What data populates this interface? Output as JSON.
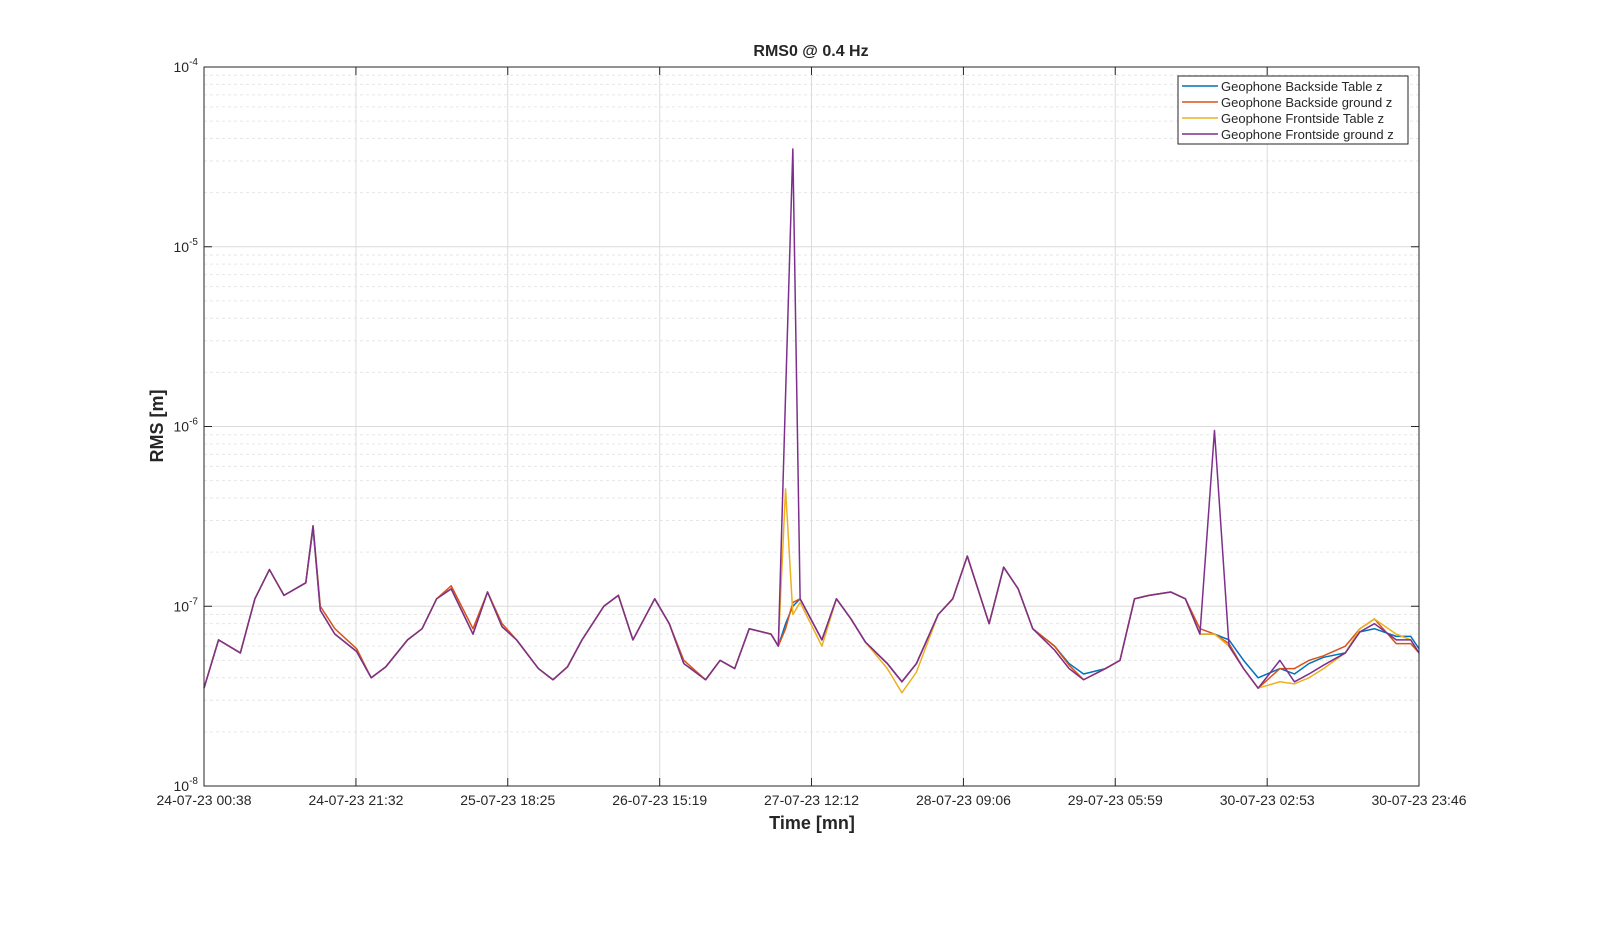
{
  "chart_data": {
    "type": "line",
    "title": "RMS0 @ 0.4 Hz",
    "xlabel": "Time [mn]",
    "ylabel": "RMS [m]",
    "log_y": true,
    "grid": true,
    "minor_grid": true,
    "legend": "top-right",
    "x": [
      "24-07-23 00:38",
      "24-07-23 02:38",
      "24-07-23 05:38",
      "24-07-23 07:38",
      "24-07-23 09:38",
      "24-07-23 11:38",
      "24-07-23 14:38",
      "24-07-23 15:38",
      "24-07-23 16:38",
      "24-07-23 18:38",
      "24-07-23 21:38",
      "24-07-23 23:38",
      "25-07-23 01:38",
      "25-07-23 04:38",
      "25-07-23 06:38",
      "25-07-23 08:38",
      "25-07-23 10:38",
      "25-07-23 13:38",
      "25-07-23 15:38",
      "25-07-23 17:38",
      "25-07-23 19:38",
      "25-07-23 22:38",
      "26-07-23 00:38",
      "26-07-23 02:38",
      "26-07-23 04:38",
      "26-07-23 07:38",
      "26-07-23 09:38",
      "26-07-23 11:38",
      "26-07-23 14:38",
      "26-07-23 16:38",
      "26-07-23 18:38",
      "26-07-23 21:38",
      "26-07-23 23:38",
      "27-07-23 01:38",
      "27-07-23 03:38",
      "27-07-23 06:38",
      "27-07-23 07:38",
      "27-07-23 08:38",
      "27-07-23 09:38",
      "27-07-23 10:38",
      "27-07-23 13:38",
      "27-07-23 15:38",
      "27-07-23 17:38",
      "27-07-23 19:38",
      "27-07-23 22:38",
      "28-07-23 00:38",
      "28-07-23 02:38",
      "28-07-23 05:38",
      "28-07-23 07:38",
      "28-07-23 09:38",
      "28-07-23 12:38",
      "28-07-23 14:38",
      "28-07-23 16:38",
      "28-07-23 18:38",
      "28-07-23 21:38",
      "28-07-23 23:38",
      "29-07-23 01:38",
      "29-07-23 04:38",
      "29-07-23 06:38",
      "29-07-23 08:38",
      "29-07-23 10:38",
      "29-07-23 13:38",
      "29-07-23 15:38",
      "29-07-23 17:38",
      "29-07-23 19:38",
      "29-07-23 21:38",
      "29-07-23 23:38",
      "30-07-23 01:38",
      "30-07-23 04:38",
      "30-07-23 06:38",
      "30-07-23 08:38",
      "30-07-23 10:38",
      "30-07-23 13:38",
      "30-07-23 15:38",
      "30-07-23 17:38",
      "30-07-23 20:38",
      "30-07-23 22:38",
      "30-07-23 23:46"
    ],
    "xlim": [
      "24-07-23 00:38",
      "30-07-23 23:46"
    ],
    "xticks": [
      "24-07-23 00:38",
      "24-07-23 21:32",
      "25-07-23 18:25",
      "26-07-23 15:19",
      "27-07-23 12:12",
      "28-07-23 09:06",
      "29-07-23 05:59",
      "30-07-23 02:53",
      "30-07-23 23:46"
    ],
    "ylim": [
      1e-08,
      0.0001
    ],
    "yticks": [
      {
        "value": 1e-08,
        "label": "10",
        "exponent": "-8"
      },
      {
        "value": 1e-07,
        "label": "10",
        "exponent": "-7"
      },
      {
        "value": 1e-06,
        "label": "10",
        "exponent": "-6"
      },
      {
        "value": 1e-05,
        "label": "10",
        "exponent": "-5"
      },
      {
        "value": 0.0001,
        "label": "10",
        "exponent": "-4"
      }
    ],
    "series": [
      {
        "name": "Geophone Backside Table z",
        "color": "#0072BD",
        "values": [
          3.5e-08,
          6.5e-08,
          5.5e-08,
          1.1e-07,
          1.6e-07,
          1.15e-07,
          1.35e-07,
          2.7e-07,
          9.5e-08,
          7e-08,
          5.6e-08,
          4e-08,
          4.6e-08,
          6.5e-08,
          7.5e-08,
          1.1e-07,
          1.25e-07,
          7e-08,
          1.2e-07,
          7.7e-08,
          6.5e-08,
          4.5e-08,
          3.9e-08,
          4.6e-08,
          6.5e-08,
          1e-07,
          1.15e-07,
          6.5e-08,
          1.1e-07,
          8e-08,
          4.8e-08,
          3.9e-08,
          5e-08,
          4.5e-08,
          7.5e-08,
          7e-08,
          6e-08,
          8e-08,
          1e-07,
          1.1e-07,
          6.5e-08,
          1.1e-07,
          8.5e-08,
          6.3e-08,
          4.8e-08,
          3.8e-08,
          4.8e-08,
          9e-08,
          1.1e-07,
          1.9e-07,
          8e-08,
          1.65e-07,
          1.25e-07,
          7.5e-08,
          6e-08,
          4.8e-08,
          4.2e-08,
          4.5e-08,
          5e-08,
          1.1e-07,
          1.15e-07,
          1.2e-07,
          1.1e-07,
          7e-08,
          7e-08,
          6.5e-08,
          5e-08,
          4e-08,
          4.5e-08,
          4.2e-08,
          4.8e-08,
          5.2e-08,
          5.5e-08,
          7.2e-08,
          7.5e-08,
          6.8e-08,
          6.8e-08,
          5.8e-08
        ]
      },
      {
        "name": "Geophone Backside ground z",
        "color": "#D95319",
        "values": [
          3.5e-08,
          6.5e-08,
          5.5e-08,
          1.1e-07,
          1.6e-07,
          1.15e-07,
          1.35e-07,
          2.8e-07,
          1e-07,
          7.5e-08,
          5.8e-08,
          4e-08,
          4.6e-08,
          6.5e-08,
          7.5e-08,
          1.1e-07,
          1.3e-07,
          7.5e-08,
          1.2e-07,
          8e-08,
          6.5e-08,
          4.5e-08,
          3.9e-08,
          4.6e-08,
          6.5e-08,
          1e-07,
          1.15e-07,
          6.5e-08,
          1.1e-07,
          8e-08,
          5e-08,
          3.9e-08,
          5e-08,
          4.5e-08,
          7.5e-08,
          7e-08,
          6e-08,
          7.5e-08,
          1.05e-07,
          1.1e-07,
          6.5e-08,
          1.1e-07,
          8.5e-08,
          6.3e-08,
          4.8e-08,
          3.8e-08,
          4.8e-08,
          9e-08,
          1.1e-07,
          1.9e-07,
          8e-08,
          1.65e-07,
          1.25e-07,
          7.5e-08,
          6e-08,
          4.7e-08,
          3.9e-08,
          4.5e-08,
          5e-08,
          1.1e-07,
          1.15e-07,
          1.2e-07,
          1.1e-07,
          7.5e-08,
          7e-08,
          6.2e-08,
          4.5e-08,
          3.5e-08,
          4.5e-08,
          4.5e-08,
          5e-08,
          5.3e-08,
          6e-08,
          7.5e-08,
          8.5e-08,
          6.2e-08,
          6.2e-08,
          5.5e-08
        ]
      },
      {
        "name": "Geophone Frontside Table z",
        "color": "#EDB120",
        "values": [
          3.5e-08,
          6.5e-08,
          5.5e-08,
          1.1e-07,
          1.6e-07,
          1.15e-07,
          1.35e-07,
          2.8e-07,
          9.5e-08,
          7e-08,
          5.6e-08,
          4e-08,
          4.6e-08,
          6.5e-08,
          7.5e-08,
          1.1e-07,
          1.25e-07,
          7e-08,
          1.2e-07,
          7.7e-08,
          6.5e-08,
          4.5e-08,
          3.9e-08,
          4.6e-08,
          6.5e-08,
          1e-07,
          1.15e-07,
          6.5e-08,
          1.1e-07,
          8e-08,
          4.8e-08,
          3.9e-08,
          5e-08,
          4.5e-08,
          7.5e-08,
          7e-08,
          6e-08,
          4.5e-07,
          9e-08,
          1.05e-07,
          6e-08,
          1.1e-07,
          8.5e-08,
          6.3e-08,
          4.5e-08,
          3.3e-08,
          4.3e-08,
          9e-08,
          1.1e-07,
          1.9e-07,
          8e-08,
          1.65e-07,
          1.25e-07,
          7.5e-08,
          5.7e-08,
          4.5e-08,
          3.9e-08,
          4.5e-08,
          5e-08,
          1.1e-07,
          1.15e-07,
          1.2e-07,
          1.1e-07,
          7e-08,
          7e-08,
          6e-08,
          4.5e-08,
          3.5e-08,
          3.8e-08,
          3.7e-08,
          4e-08,
          4.5e-08,
          5.5e-08,
          7.5e-08,
          8.5e-08,
          7e-08,
          6.5e-08,
          5.5e-08
        ]
      },
      {
        "name": "Geophone Frontside ground z",
        "color": "#7E2F8E",
        "values": [
          3.5e-08,
          6.5e-08,
          5.5e-08,
          1.1e-07,
          1.6e-07,
          1.15e-07,
          1.35e-07,
          2.8e-07,
          9.5e-08,
          7e-08,
          5.6e-08,
          4e-08,
          4.6e-08,
          6.5e-08,
          7.5e-08,
          1.1e-07,
          1.25e-07,
          7e-08,
          1.2e-07,
          7.7e-08,
          6.5e-08,
          4.5e-08,
          3.9e-08,
          4.6e-08,
          6.5e-08,
          1e-07,
          1.15e-07,
          6.5e-08,
          1.1e-07,
          8e-08,
          4.8e-08,
          3.9e-08,
          5e-08,
          4.5e-08,
          7.5e-08,
          7e-08,
          6e-08,
          1.5e-06,
          3.5e-05,
          1.1e-07,
          6.5e-08,
          1.1e-07,
          8.5e-08,
          6.3e-08,
          4.8e-08,
          3.8e-08,
          4.8e-08,
          9e-08,
          1.1e-07,
          1.9e-07,
          8e-08,
          1.65e-07,
          1.25e-07,
          7.5e-08,
          5.7e-08,
          4.5e-08,
          3.9e-08,
          4.5e-08,
          5e-08,
          1.1e-07,
          1.15e-07,
          1.2e-07,
          1.1e-07,
          7e-08,
          9.5e-07,
          6e-08,
          4.5e-08,
          3.5e-08,
          5e-08,
          3.8e-08,
          4.2e-08,
          4.7e-08,
          5.5e-08,
          7.2e-08,
          8e-08,
          6.5e-08,
          6.5e-08,
          5.5e-08
        ]
      }
    ]
  }
}
